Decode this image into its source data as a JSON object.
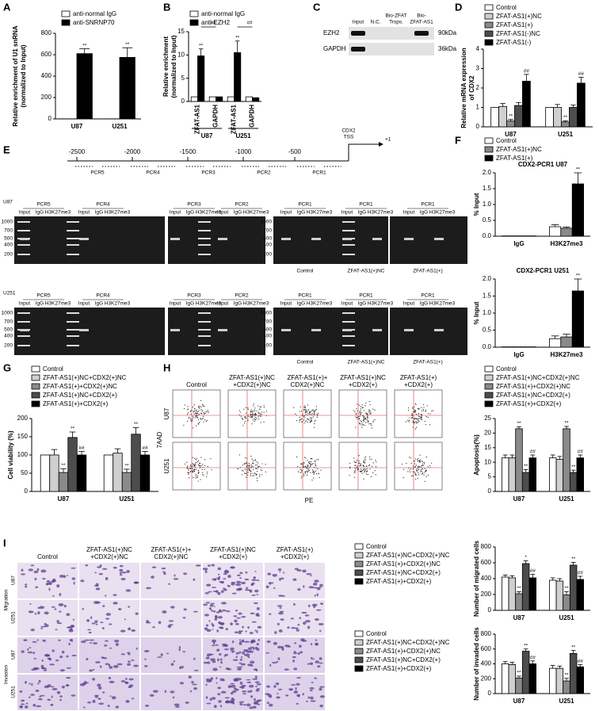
{
  "panel_letters": [
    "A",
    "B",
    "C",
    "D",
    "E",
    "F",
    "G",
    "H",
    "I"
  ],
  "chart_data": [
    {
      "type": "bar",
      "ylabel": [
        "Relative enrichment of U1 snRNA",
        "(normalized to Input)"
      ],
      "categories": [
        "U87",
        "U251"
      ],
      "series": [
        {
          "name": "anti-normal IgG",
          "color": "#ffffff",
          "values": [
            1,
            1
          ],
          "errors": [
            null,
            null
          ]
        },
        {
          "name": "anti-SNRNP70",
          "color": "#000000",
          "values": [
            610,
            575
          ],
          "errors": [
            45,
            90
          ],
          "labels": [
            "**",
            "**"
          ]
        }
      ],
      "ylim": [
        0,
        800
      ],
      "yticks": [
        0,
        200,
        400,
        600,
        800
      ],
      "legend": "top-left"
    },
    {
      "type": "bar",
      "ylabel": [
        "Relative enrichment",
        "(normalized to Input)"
      ],
      "categories": [
        "ZFAT-AS1",
        "GAPDH",
        "ZFAT-AS1",
        "GAPDH"
      ],
      "groups": [
        "U87",
        "U251"
      ],
      "series": [
        {
          "name": "anti-normal IgG",
          "color": "#ffffff",
          "values": [
            1,
            1,
            1,
            1
          ],
          "errors": [
            null,
            null,
            null,
            null
          ]
        },
        {
          "name": "anti-EZH2",
          "color": "#000000",
          "values": [
            9.8,
            1,
            10.5,
            0.8
          ],
          "errors": [
            1.5,
            null,
            2.5,
            null
          ],
          "labels": [
            "**",
            null,
            "**",
            null
          ]
        }
      ],
      "annotations": [
        "##",
        "##"
      ],
      "ylim": [
        0,
        15
      ],
      "yticks": [
        0,
        5,
        10,
        15
      ],
      "legend": "top-left"
    },
    {
      "type": "bar",
      "ylabel": [
        "Relative mRNA expression",
        "of CDX2"
      ],
      "categories": [
        "U87",
        "U251"
      ],
      "series": [
        {
          "name": "Control",
          "color": "#ffffff",
          "values": [
            1,
            1
          ],
          "errors": [
            null,
            null
          ]
        },
        {
          "name": "ZFAT-AS1(+)NC",
          "color": "#cfcfcf",
          "values": [
            1.05,
            1.0
          ],
          "errors": [
            0.15,
            0.15
          ]
        },
        {
          "name": "ZFAT-AS1(+)",
          "color": "#8a8a8a",
          "values": [
            0.3,
            0.25
          ],
          "errors": [
            0.08,
            0.06
          ],
          "labels": [
            "**",
            "**"
          ]
        },
        {
          "name": "ZFAT-AS1(-)NC",
          "color": "#4d4d4d",
          "values": [
            1.1,
            1.0
          ],
          "errors": [
            0.15,
            0.12
          ]
        },
        {
          "name": "ZFAT-AS1(-)",
          "color": "#000000",
          "values": [
            2.35,
            2.25
          ],
          "errors": [
            0.35,
            0.3
          ],
          "labels": [
            "##",
            "##"
          ]
        }
      ],
      "ylim": [
        0,
        4
      ],
      "yticks": [
        0,
        1,
        2,
        3,
        4
      ],
      "legend": "top"
    },
    {
      "type": "bar",
      "title": "CDX2-PCR1   U87",
      "ylabel": [
        "% Input"
      ],
      "categories": [
        "IgG",
        "H3K27me3"
      ],
      "series": [
        {
          "name": "Control",
          "color": "#ffffff",
          "values": [
            0.01,
            0.3
          ],
          "errors": [
            null,
            0.06
          ]
        },
        {
          "name": "ZFAT-AS1(+)NC",
          "color": "#8a8a8a",
          "values": [
            0.01,
            0.25
          ],
          "errors": [
            null,
            0.04
          ]
        },
        {
          "name": "ZFAT-AS1(+)",
          "color": "#000000",
          "values": [
            0.01,
            1.65
          ],
          "errors": [
            null,
            0.35
          ],
          "labels": [
            null,
            "**"
          ]
        }
      ],
      "ylim": [
        0,
        2
      ],
      "yticks": [
        {
          "value": 0,
          "label": "0.0"
        },
        {
          "value": 0.5,
          "label": "0.5"
        },
        {
          "value": 1,
          "label": "1.0"
        },
        {
          "value": 1.5,
          "label": "1.5"
        },
        {
          "value": 2,
          "label": "2.0"
        }
      ],
      "legend": "top"
    },
    {
      "type": "bar",
      "title": "CDX2-PCR1   U251",
      "ylabel": [
        "% Input"
      ],
      "categories": [
        "IgG",
        "H3K27me3"
      ],
      "series": [
        {
          "color": "#ffffff",
          "values": [
            0.01,
            0.25
          ],
          "errors": [
            null,
            0.08
          ]
        },
        {
          "color": "#8a8a8a",
          "values": [
            0.01,
            0.3
          ],
          "errors": [
            null,
            0.08
          ]
        },
        {
          "color": "#000000",
          "values": [
            0.01,
            1.65
          ],
          "errors": [
            null,
            0.35
          ],
          "labels": [
            null,
            "**"
          ]
        }
      ],
      "ylim": [
        0,
        2
      ],
      "yticks": [
        {
          "value": 0,
          "label": "0.0"
        },
        {
          "value": 0.5,
          "label": "0.5"
        },
        {
          "value": 1,
          "label": "1.0"
        },
        {
          "value": 1.5,
          "label": "1.5"
        },
        {
          "value": 2,
          "label": "2.0"
        }
      ]
    },
    {
      "type": "bar",
      "ylabel": [
        "Cell viability (%)"
      ],
      "categories": [
        "U87",
        "U251"
      ],
      "series": [
        {
          "name": "Control",
          "color": "#ffffff",
          "values": [
            100,
            100
          ],
          "errors": [
            null,
            null
          ]
        },
        {
          "name": "ZFAT-AS1(+)NC+CDX2(+)NC",
          "color": "#cfcfcf",
          "values": [
            100,
            105
          ],
          "errors": [
            15,
            12
          ]
        },
        {
          "name": "ZFAT-AS1(+)+CDX2(+)NC",
          "color": "#8a8a8a",
          "values": [
            52,
            52
          ],
          "errors": [
            10,
            9
          ],
          "labels": [
            "**",
            "**"
          ]
        },
        {
          "name": "ZFAT-AS1(+)NC+CDX2(+)",
          "color": "#4d4d4d",
          "values": [
            148,
            157
          ],
          "errors": [
            15,
            18
          ],
          "labels": [
            "**",
            "**"
          ]
        },
        {
          "name": "ZFAT-AS1(+)+CDX2(+)",
          "color": "#000000",
          "values": [
            100,
            100
          ],
          "errors": [
            10,
            10
          ],
          "labels": [
            "##",
            "##"
          ]
        }
      ],
      "ylim": [
        0,
        200
      ],
      "yticks": [
        0,
        50,
        100,
        150,
        200
      ],
      "legend": "top"
    },
    {
      "type": "bar",
      "ylabel": [
        "Apoptosis(%)"
      ],
      "categories": [
        "U87",
        "U251"
      ],
      "series": [
        {
          "name": "Control",
          "color": "#ffffff",
          "values": [
            11.5,
            11.5
          ],
          "errors": [
            1,
            1
          ]
        },
        {
          "name": "ZFAT-AS1(+)NC+CDX2(+)NC",
          "color": "#cfcfcf",
          "values": [
            11.5,
            11
          ],
          "errors": [
            1,
            1
          ]
        },
        {
          "name": "ZFAT-AS1(+)+CDX2(+)NC",
          "color": "#8a8a8a",
          "values": [
            21.5,
            21.5
          ],
          "errors": [
            0.7,
            0.8
          ],
          "labels": [
            "**",
            "**"
          ]
        },
        {
          "name": "ZFAT-AS1(+)NC+CDX2(+)",
          "color": "#4d4d4d",
          "values": [
            6.5,
            6.5
          ],
          "errors": [
            1,
            0.8
          ],
          "labels": [
            "**",
            "**"
          ]
        },
        {
          "name": "ZFAT-AS1(+)+CDX2(+)",
          "color": "#000000",
          "values": [
            11.5,
            11.5
          ],
          "errors": [
            1,
            1
          ],
          "labels": [
            "##",
            "##"
          ]
        }
      ],
      "ylim": [
        0,
        25
      ],
      "yticks": [
        0,
        5,
        10,
        15,
        20,
        25
      ],
      "legend": "top"
    },
    {
      "type": "bar",
      "ylabel": [
        "Number of migrated cells"
      ],
      "categories": [
        "U87",
        "U251"
      ],
      "series": [
        {
          "name": "Control",
          "color": "#ffffff",
          "values": [
            420,
            380
          ],
          "errors": [
            25,
            30
          ]
        },
        {
          "name": "ZFAT-AS1(+)NC+CDX2(+)NC",
          "color": "#cfcfcf",
          "values": [
            410,
            370
          ],
          "errors": [
            25,
            30
          ]
        },
        {
          "name": "ZFAT-AS1(+)+CDX2(+)NC",
          "color": "#8a8a8a",
          "values": [
            210,
            195
          ],
          "errors": [
            25,
            40
          ],
          "labels": [
            "**",
            "**"
          ]
        },
        {
          "name": "ZFAT-AS1(+)NC+CDX2(+)",
          "color": "#4d4d4d",
          "values": [
            590,
            570
          ],
          "errors": [
            35,
            35
          ],
          "labels": [
            "*",
            "**"
          ]
        },
        {
          "name": "ZFAT-AS1(+)+CDX2(+)",
          "color": "#000000",
          "values": [
            410,
            390
          ],
          "errors": [
            45,
            40
          ],
          "labels": [
            "##",
            "##"
          ]
        }
      ],
      "ylim": [
        0,
        800
      ],
      "yticks": [
        0,
        200,
        400,
        600,
        800
      ],
      "legend": "left"
    },
    {
      "type": "bar",
      "ylabel": [
        "Number of invaded cells"
      ],
      "categories": [
        "U87",
        "U251"
      ],
      "series": [
        {
          "name": "Control",
          "color": "#ffffff",
          "values": [
            400,
            340
          ],
          "errors": [
            30,
            40
          ]
        },
        {
          "name": "ZFAT-AS1(+)NC+CDX2(+)NC",
          "color": "#cfcfcf",
          "values": [
            390,
            340
          ],
          "errors": [
            30,
            30
          ]
        },
        {
          "name": "ZFAT-AS1(+)+CDX2(+)NC",
          "color": "#8a8a8a",
          "values": [
            210,
            170
          ],
          "errors": [
            25,
            35
          ],
          "labels": [
            "**",
            "**"
          ]
        },
        {
          "name": "ZFAT-AS1(+)NC+CDX2(+)",
          "color": "#4d4d4d",
          "values": [
            570,
            540
          ],
          "errors": [
            30,
            40
          ],
          "labels": [
            "**",
            "**"
          ]
        },
        {
          "name": "ZFAT-AS1(+)+CDX2(+)",
          "color": "#000000",
          "values": [
            400,
            360
          ],
          "errors": [
            40,
            30
          ],
          "labels": [
            "##",
            "##"
          ]
        }
      ],
      "ylim": [
        0,
        800
      ],
      "yticks": [
        0,
        200,
        400,
        600,
        800
      ],
      "legend": "left"
    }
  ],
  "blot": {
    "lanes": [
      [
        "Input"
      ],
      [
        "N.C."
      ],
      [
        "Bio-ZFAT",
        "Trsps."
      ],
      [
        "Bio-",
        "ZFAT-AS1"
      ]
    ],
    "rows": [
      {
        "label": "EZH2",
        "size": "90kDa"
      },
      {
        "label": "GAPDH",
        "size": "36kDa"
      }
    ]
  },
  "promoter": {
    "positions": [
      -2500,
      -2000,
      -1500,
      -1000,
      -500
    ],
    "tss": [
      "CDX2",
      "TSS"
    ],
    "start": "+1",
    "primers": [
      "PCR5",
      "PCR4",
      "PCR3",
      "PCR2",
      "PCR1"
    ]
  },
  "gels": {
    "rows": [
      "U87",
      "U251"
    ],
    "groups": [
      {
        "title": "PCR5",
        "lanes": [
          "Input",
          "IgG",
          "H3K27me3"
        ]
      },
      {
        "title": "PCR4",
        "lanes": [
          "Input",
          "IgG",
          "H3K27me3"
        ]
      },
      {
        "title": "PCR3",
        "lanes": [
          "Input",
          "IgG",
          "H3K27me3"
        ]
      },
      {
        "title": "PCR2",
        "lanes": [
          "Input",
          "IgG",
          "H3K27me3"
        ]
      },
      {
        "title": "PCR1",
        "lanes": [
          "Input",
          "IgG",
          "H3K27me3"
        ]
      },
      {
        "title": "PCR1",
        "lanes": [
          "Input",
          "IgG",
          "H3K27me3"
        ]
      },
      {
        "title": "PCR1",
        "lanes": [
          "Input",
          "IgG",
          "H3K27me3"
        ]
      }
    ],
    "ladder": [
      1000,
      700,
      500,
      400,
      200
    ],
    "conditions": [
      "Control",
      "ZFAT-AS1(+)NC",
      "ZFAT-AS1(+)"
    ]
  },
  "flow": {
    "columns": [
      [
        "Control"
      ],
      [
        "ZFAT-AS1(+)NC",
        "+CDX2(+)NC"
      ],
      [
        "ZFAT-AS1(+)+",
        "CDX2(+)NC"
      ],
      [
        "ZFAT-AS1(+)NC",
        "+CDX2(+)"
      ],
      [
        "ZFAT-AS1(+)",
        "+CDX2(+)"
      ]
    ],
    "rows": [
      "U87",
      "U251"
    ],
    "y_axis": "7AAD",
    "x_axis": "PE"
  },
  "microscopy": {
    "columns": [
      [
        "Control"
      ],
      [
        "ZFAT-AS1(+)NC",
        "+CDX2(+)NC"
      ],
      [
        "ZFAT-AS1(+)+",
        "CDX2(+)NC"
      ],
      [
        "ZFAT-AS1(+)NC",
        "+CDX2(+)"
      ],
      [
        "ZFAT-AS1(+)",
        "+CDX2(+)"
      ]
    ],
    "assays": [
      {
        "label": "Migration",
        "rows": [
          "U87",
          "U251"
        ]
      },
      {
        "label": "Invasion",
        "rows": [
          "U87",
          "U251"
        ]
      }
    ]
  }
}
